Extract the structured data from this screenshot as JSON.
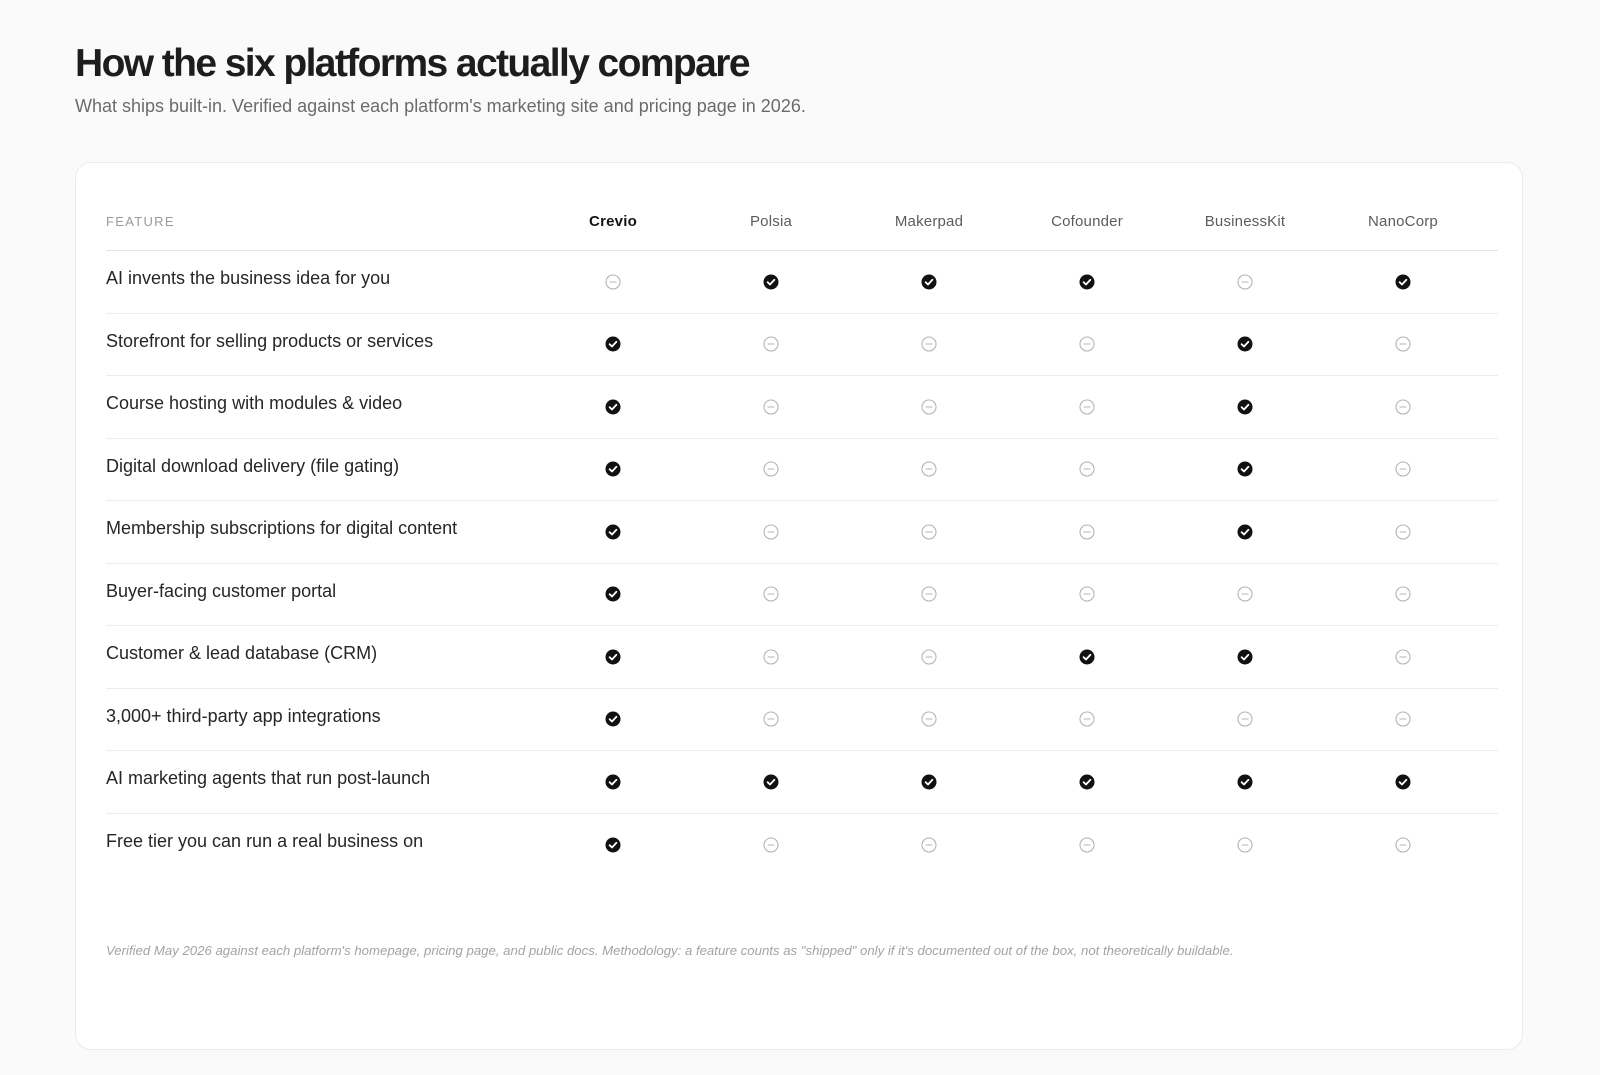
{
  "header": {
    "title": "How the six platforms actually compare",
    "subtitle": "What ships built-in. Verified against each platform's marketing site and pricing page in 2026."
  },
  "table": {
    "feature_header": "FEATURE",
    "platforms": [
      "Crevio",
      "Polsia",
      "Makerpad",
      "Cofounder",
      "BusinessKit",
      "NanoCorp"
    ],
    "rows": [
      {
        "feature": "AI invents the business idea for you",
        "values": [
          false,
          true,
          true,
          true,
          false,
          true
        ]
      },
      {
        "feature": "Storefront for selling products or services",
        "values": [
          true,
          false,
          false,
          false,
          true,
          false
        ]
      },
      {
        "feature": "Course hosting with modules & video",
        "values": [
          true,
          false,
          false,
          false,
          true,
          false
        ]
      },
      {
        "feature": "Digital download delivery (file gating)",
        "values": [
          true,
          false,
          false,
          false,
          true,
          false
        ]
      },
      {
        "feature": "Membership subscriptions for digital content",
        "values": [
          true,
          false,
          false,
          false,
          true,
          false
        ]
      },
      {
        "feature": "Buyer-facing customer portal",
        "values": [
          true,
          false,
          false,
          false,
          false,
          false
        ]
      },
      {
        "feature": "Customer & lead database (CRM)",
        "values": [
          true,
          false,
          false,
          true,
          true,
          false
        ]
      },
      {
        "feature": "3,000+ third-party app integrations",
        "values": [
          true,
          false,
          false,
          false,
          false,
          false
        ]
      },
      {
        "feature": "AI marketing agents that run post-launch",
        "values": [
          true,
          true,
          true,
          true,
          true,
          true
        ]
      },
      {
        "feature": "Free tier you can run a real business on",
        "values": [
          true,
          false,
          false,
          false,
          false,
          false
        ]
      }
    ]
  },
  "footnote": "Verified May 2026 against each platform's homepage, pricing page, and public docs. Methodology: a feature counts as \"shipped\" only if it's documented out of the box, not theoretically buildable.",
  "icons": {
    "yes": "check-circle-icon",
    "no": "minus-circle-icon"
  },
  "colors": {
    "check": "#111111",
    "minus": "#b5b5b5"
  }
}
